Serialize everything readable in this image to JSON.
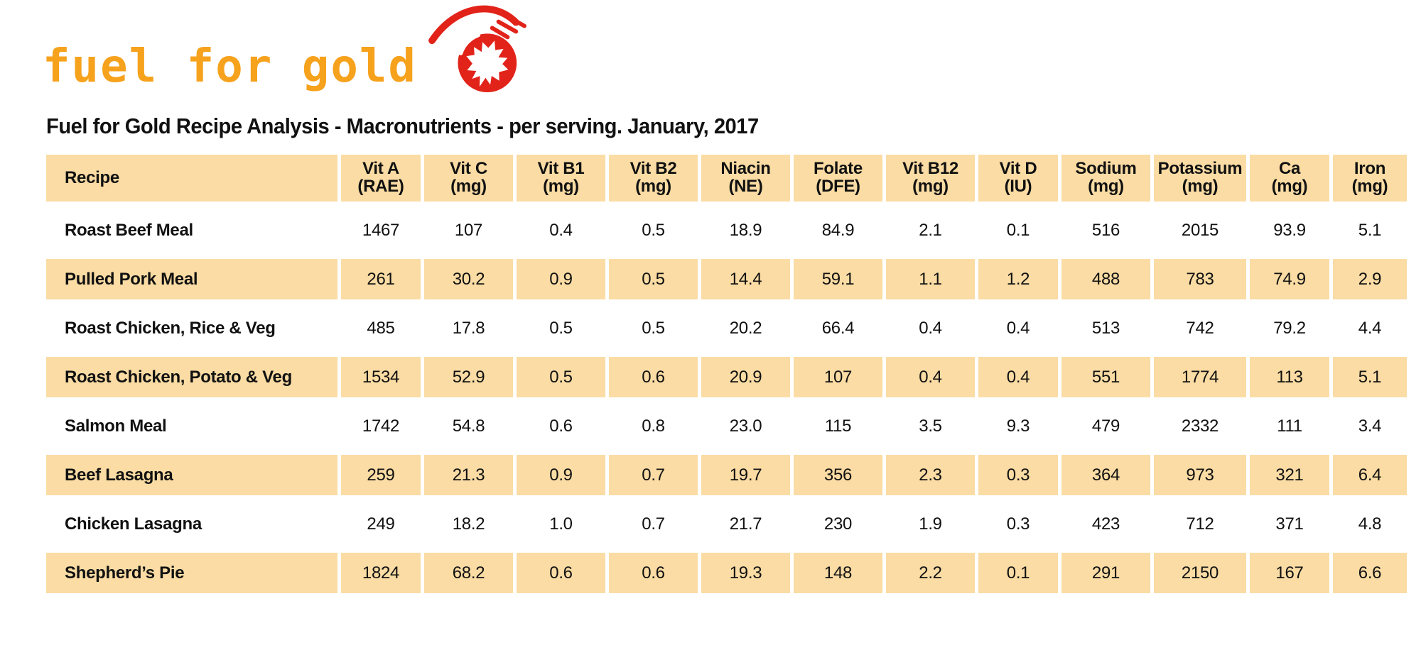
{
  "logo": {
    "text": "fuel for gold",
    "icon": "flaming-maple-leaf-icon",
    "text_color": "#F6A21D",
    "icon_color": "#E2231A"
  },
  "title": "Fuel for Gold Recipe Analysis - Macronutrients - per serving. January, 2017",
  "table": {
    "header_bg": "#FADCA4",
    "stripe_bg": "#FADCA4",
    "columns": [
      {
        "label": "Recipe",
        "unit": ""
      },
      {
        "label": "Vit A",
        "unit": "(RAE)"
      },
      {
        "label": "Vit C",
        "unit": "(mg)"
      },
      {
        "label": "Vit B1",
        "unit": "(mg)"
      },
      {
        "label": "Vit B2",
        "unit": "(mg)"
      },
      {
        "label": "Niacin",
        "unit": "(NE)"
      },
      {
        "label": "Folate",
        "unit": "(DFE)"
      },
      {
        "label": "Vit B12",
        "unit": "(mg)"
      },
      {
        "label": "Vit D",
        "unit": "(IU)"
      },
      {
        "label": "Sodium",
        "unit": "(mg)"
      },
      {
        "label": "Potassium",
        "unit": "(mg)"
      },
      {
        "label": "Ca",
        "unit": "(mg)"
      },
      {
        "label": "Iron",
        "unit": "(mg)"
      }
    ],
    "rows": [
      {
        "name": "Roast Beef Meal",
        "values": [
          "1467",
          "107",
          "0.4",
          "0.5",
          "18.9",
          "84.9",
          "2.1",
          "0.1",
          "516",
          "2015",
          "93.9",
          "5.1"
        ]
      },
      {
        "name": "Pulled Pork Meal",
        "values": [
          "261",
          "30.2",
          "0.9",
          "0.5",
          "14.4",
          "59.1",
          "1.1",
          "1.2",
          "488",
          "783",
          "74.9",
          "2.9"
        ]
      },
      {
        "name": "Roast Chicken, Rice & Veg",
        "values": [
          "485",
          "17.8",
          "0.5",
          "0.5",
          "20.2",
          "66.4",
          "0.4",
          "0.4",
          "513",
          "742",
          "79.2",
          "4.4"
        ]
      },
      {
        "name": "Roast Chicken, Potato & Veg",
        "values": [
          "1534",
          "52.9",
          "0.5",
          "0.6",
          "20.9",
          "107",
          "0.4",
          "0.4",
          "551",
          "1774",
          "113",
          "5.1"
        ]
      },
      {
        "name": "Salmon Meal",
        "values": [
          "1742",
          "54.8",
          "0.6",
          "0.8",
          "23.0",
          "115",
          "3.5",
          "9.3",
          "479",
          "2332",
          "111",
          "3.4"
        ]
      },
      {
        "name": "Beef Lasagna",
        "values": [
          "259",
          "21.3",
          "0.9",
          "0.7",
          "19.7",
          "356",
          "2.3",
          "0.3",
          "364",
          "973",
          "321",
          "6.4"
        ]
      },
      {
        "name": "Chicken Lasagna",
        "values": [
          "249",
          "18.2",
          "1.0",
          "0.7",
          "21.7",
          "230",
          "1.9",
          "0.3",
          "423",
          "712",
          "371",
          "4.8"
        ]
      },
      {
        "name": "Shepherd’s Pie",
        "values": [
          "1824",
          "68.2",
          "0.6",
          "0.6",
          "19.3",
          "148",
          "2.2",
          "0.1",
          "291",
          "2150",
          "167",
          "6.6"
        ]
      }
    ]
  }
}
